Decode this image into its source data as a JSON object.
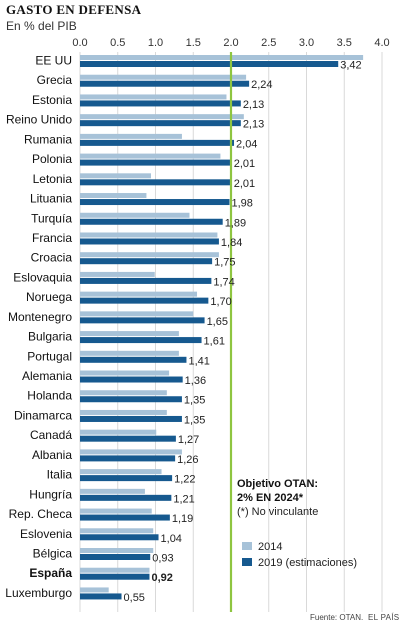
{
  "header": {
    "title": "GASTO EN DEFENSA",
    "subtitle": "En % del PIB"
  },
  "colors": {
    "series_2014": "#a7c2d8",
    "series_2019": "#16598f",
    "target_line": "#8ec540",
    "grid": "#d9d9d9"
  },
  "annotation": {
    "line1": "Objetivo OTAN:",
    "line2": "2% EN 2024*",
    "line3": "(*) No vinculante"
  },
  "footer": {
    "source": "Fuente: OTAN.",
    "brand": "EL PAÍS"
  },
  "chart_data": {
    "type": "bar",
    "orientation": "horizontal",
    "title": "GASTO EN DEFENSA",
    "subtitle": "En % del PIB",
    "xlim": [
      0,
      4.0
    ],
    "xticks": [
      "0.0",
      "0.5",
      "1.0",
      "1.5",
      "2.0",
      "2.5",
      "3.0",
      "3.5",
      "4.0"
    ],
    "grid": true,
    "legend_position": "bottom-right",
    "reference_line": {
      "x": 2.0
    },
    "highlight_category": "España",
    "categories": [
      "EE UU",
      "Grecia",
      "Estonia",
      "Reino Unido",
      "Rumania",
      "Polonia",
      "Letonia",
      "Lituania",
      "Turquía",
      "Francia",
      "Croacia",
      "Eslovaquia",
      "Noruega",
      "Montenegro",
      "Bulgaria",
      "Portugal",
      "Alemania",
      "Holanda",
      "Dinamarca",
      "Canadá",
      "Albania",
      "Italia",
      "Hungría",
      "Rep. Checa",
      "Eslovenia",
      "Bélgica",
      "España",
      "Luxemburgo"
    ],
    "series": [
      {
        "name": "2014",
        "values": [
          3.75,
          2.2,
          1.94,
          2.17,
          1.35,
          1.86,
          0.94,
          0.88,
          1.45,
          1.82,
          1.84,
          0.99,
          1.55,
          1.5,
          1.31,
          1.31,
          1.18,
          1.15,
          1.15,
          1.01,
          1.35,
          1.08,
          0.86,
          0.95,
          0.97,
          0.97,
          0.92,
          0.38
        ]
      },
      {
        "name": "2019 (estimaciones)",
        "values": [
          3.42,
          2.24,
          2.13,
          2.13,
          2.04,
          2.01,
          2.01,
          1.98,
          1.89,
          1.84,
          1.75,
          1.74,
          1.7,
          1.65,
          1.61,
          1.41,
          1.36,
          1.35,
          1.35,
          1.27,
          1.26,
          1.22,
          1.21,
          1.19,
          1.04,
          0.93,
          0.92,
          0.55
        ]
      }
    ],
    "data_labels": [
      "3,42",
      "2,24",
      "2,13",
      "2,13",
      "2,04",
      "2,01",
      "2,01",
      "1,98",
      "1,89",
      "1,84",
      "1,75",
      "1,74",
      "1,70",
      "1,65",
      "1,61",
      "1,41",
      "1,36",
      "1,35",
      "1,35",
      "1,27",
      "1,26",
      "1,22",
      "1,21",
      "1,19",
      "1,04",
      "0,93",
      "0,92",
      "0,55"
    ]
  }
}
